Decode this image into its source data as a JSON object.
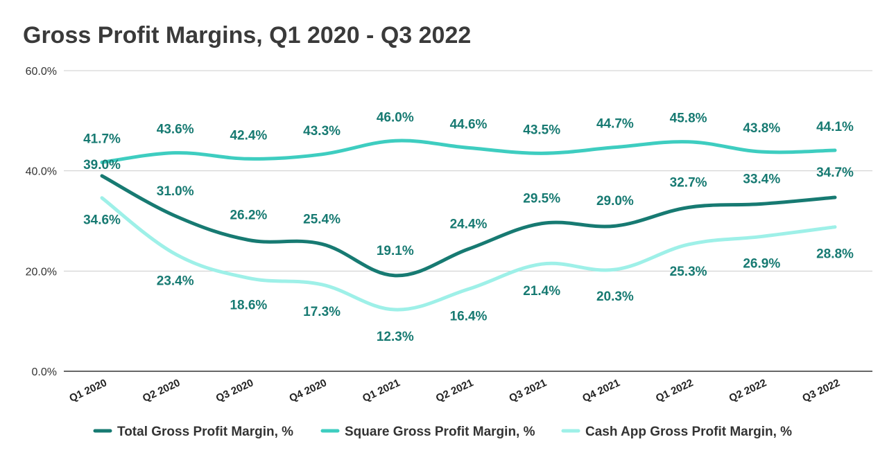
{
  "chart_data": {
    "type": "line",
    "title": "Gross Profit Margins, Q1 2020 - Q3 2022",
    "categories": [
      "Q1 2020",
      "Q2 2020",
      "Q3 2020",
      "Q4 2020",
      "Q1 2021",
      "Q2 2021",
      "Q3 2021",
      "Q4 2021",
      "Q1 2022",
      "Q2 2022",
      "Q3 2022"
    ],
    "ylim": [
      0,
      60
    ],
    "yticks": [
      0,
      20,
      40,
      60
    ],
    "ytick_labels": [
      "0.0%",
      "20.0%",
      "40.0%",
      "60.0%"
    ],
    "xlabel": "",
    "ylabel": "",
    "grid": true,
    "legend_position": "bottom",
    "label_color": "#177a72",
    "series": [
      {
        "name": "Total Gross Profit Margin, %",
        "color": "#177a72",
        "values": [
          39.0,
          31.0,
          26.2,
          25.4,
          19.1,
          24.4,
          29.5,
          29.0,
          32.7,
          33.4,
          34.7
        ],
        "labels": [
          "39.0%",
          "31.0%",
          "26.2%",
          "25.4%",
          "19.1%",
          "24.4%",
          "29.5%",
          "29.0%",
          "32.7%",
          "33.4%",
          "34.7%"
        ]
      },
      {
        "name": "Square Gross Profit Margin, %",
        "color": "#3ecdc0",
        "values": [
          41.7,
          43.6,
          42.4,
          43.3,
          46.0,
          44.6,
          43.5,
          44.7,
          45.8,
          43.8,
          44.1
        ],
        "labels": [
          "41.7%",
          "43.6%",
          "42.4%",
          "43.3%",
          "46.0%",
          "44.6%",
          "43.5%",
          "44.7%",
          "45.8%",
          "43.8%",
          "44.1%"
        ]
      },
      {
        "name": "Cash App Gross Profit Margin, %",
        "color": "#9ef0e8",
        "values": [
          34.6,
          23.4,
          18.6,
          17.3,
          12.3,
          16.4,
          21.4,
          20.3,
          25.3,
          26.9,
          28.8
        ],
        "labels": [
          "34.6%",
          "23.4%",
          "18.6%",
          "17.3%",
          "12.3%",
          "16.4%",
          "21.4%",
          "20.3%",
          "25.3%",
          "26.9%",
          "28.8%"
        ]
      }
    ]
  }
}
